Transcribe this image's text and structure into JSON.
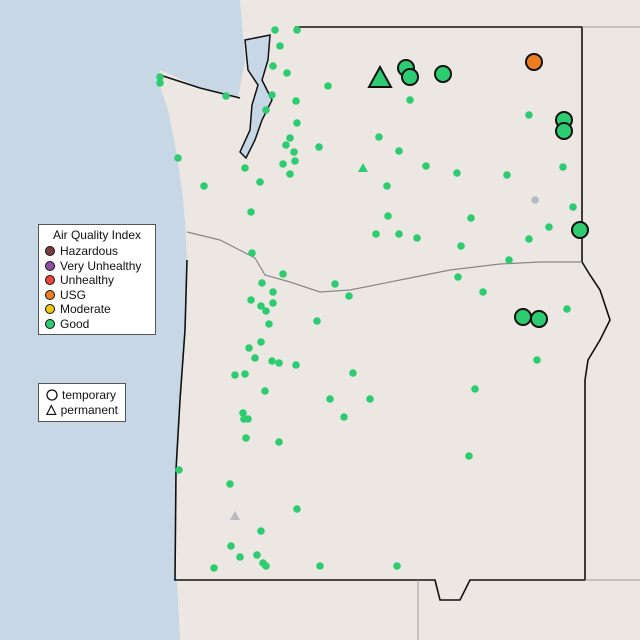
{
  "legend_aqi": {
    "title": "Air Quality Index",
    "items": [
      {
        "label": "Hazardous",
        "color": "#7e3b3b"
      },
      {
        "label": "Very Unhealthy",
        "color": "#8e4fa8"
      },
      {
        "label": "Unhealthy",
        "color": "#e8453c"
      },
      {
        "label": "USG",
        "color": "#ee7d22"
      },
      {
        "label": "Moderate",
        "color": "#f2c511"
      },
      {
        "label": "Good",
        "color": "#2ecc71"
      }
    ]
  },
  "legend_type": {
    "items": [
      {
        "label": "temporary",
        "shape": "circle"
      },
      {
        "label": "permanent",
        "shape": "triangle"
      }
    ]
  },
  "colors": {
    "ocean": "#c7d7e6",
    "land": "#ede7e4",
    "border": "#111111",
    "no_data": "#b9b9c4"
  }
}
